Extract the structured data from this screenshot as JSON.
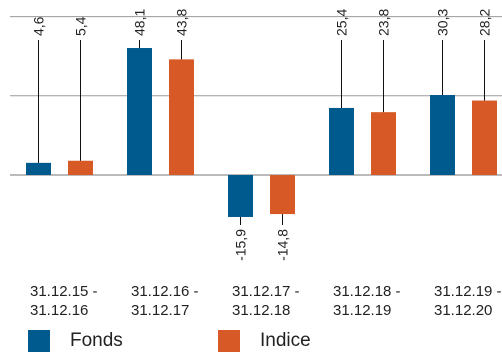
{
  "chart_data": {
    "type": "bar",
    "categories": [
      [
        "31.12.15 -",
        "31.12.16"
      ],
      [
        "31.12.16 -",
        "31.12.17"
      ],
      [
        "31.12.17 -",
        "31.12.18"
      ],
      [
        "31.12.18 -",
        "31.12.19"
      ],
      [
        "31.12.19 -",
        "31.12.20"
      ]
    ],
    "series": [
      {
        "name": "Fonds",
        "color": "#005a8e",
        "values": [
          4.6,
          48.1,
          -15.9,
          25.4,
          30.3
        ],
        "labels": [
          "4,6",
          "48,1",
          "-15,9",
          "25,4",
          "30,3"
        ]
      },
      {
        "name": "Indice",
        "color": "#d75a26",
        "values": [
          5.4,
          43.8,
          -14.8,
          23.8,
          28.2
        ],
        "labels": [
          "5,4",
          "43,8",
          "-14,8",
          "23,8",
          "28,2"
        ]
      }
    ],
    "ylim": [
      -20,
      60
    ],
    "gridlines": [
      30,
      60
    ],
    "grid": true
  }
}
